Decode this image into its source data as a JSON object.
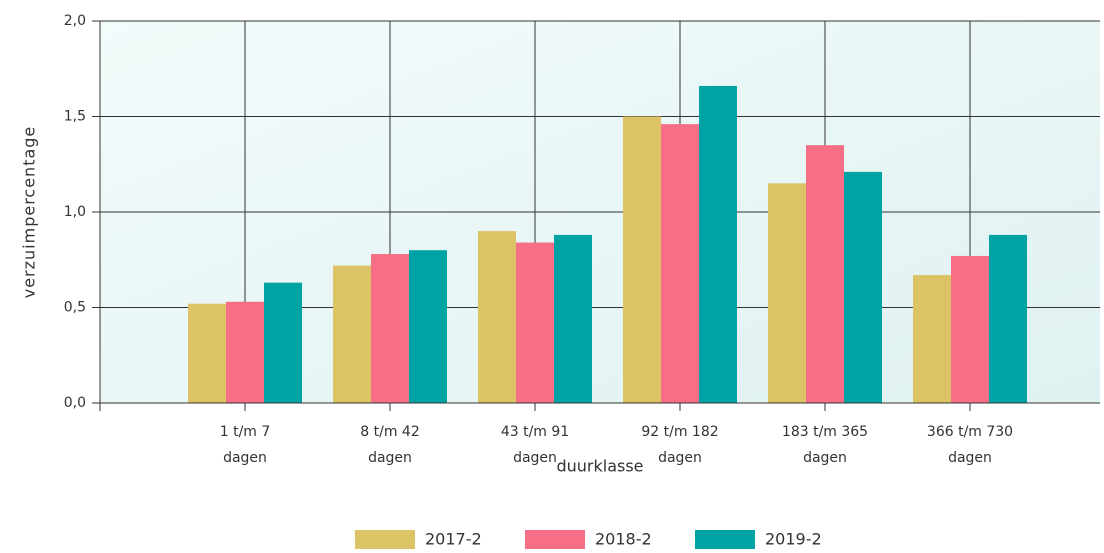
{
  "chart_data": {
    "type": "bar",
    "x_label": "duurklasse",
    "y_label": "verzuimpercentage",
    "categories": [
      "1 t/m 7 dagen",
      "8 t/m 42 dagen",
      "43 t/m 91 dagen",
      "92 t/m 182 dagen",
      "183 t/m 365 dagen",
      "366 t/m 730 dagen"
    ],
    "series": [
      {
        "name": "2017-2",
        "color": "#dcc466",
        "values": [
          0.52,
          0.72,
          0.9,
          1.5,
          1.15,
          0.67
        ]
      },
      {
        "name": "2018-2",
        "color": "#f76e87",
        "values": [
          0.53,
          0.78,
          0.84,
          1.46,
          1.35,
          0.77
        ]
      },
      {
        "name": "2019-2",
        "color": "#00a3a3",
        "values": [
          0.63,
          0.8,
          0.88,
          1.66,
          1.21,
          0.88
        ]
      }
    ],
    "ylim": [
      0,
      2
    ],
    "yticks": [
      {
        "value": 0,
        "label": "0,0"
      },
      {
        "value": 0.5,
        "label": "0,5"
      },
      {
        "value": 1,
        "label": "1,0"
      },
      {
        "value": 1.5,
        "label": "1,5"
      },
      {
        "value": 2,
        "label": "2,0"
      }
    ],
    "grid": true,
    "legend": "bottom"
  }
}
